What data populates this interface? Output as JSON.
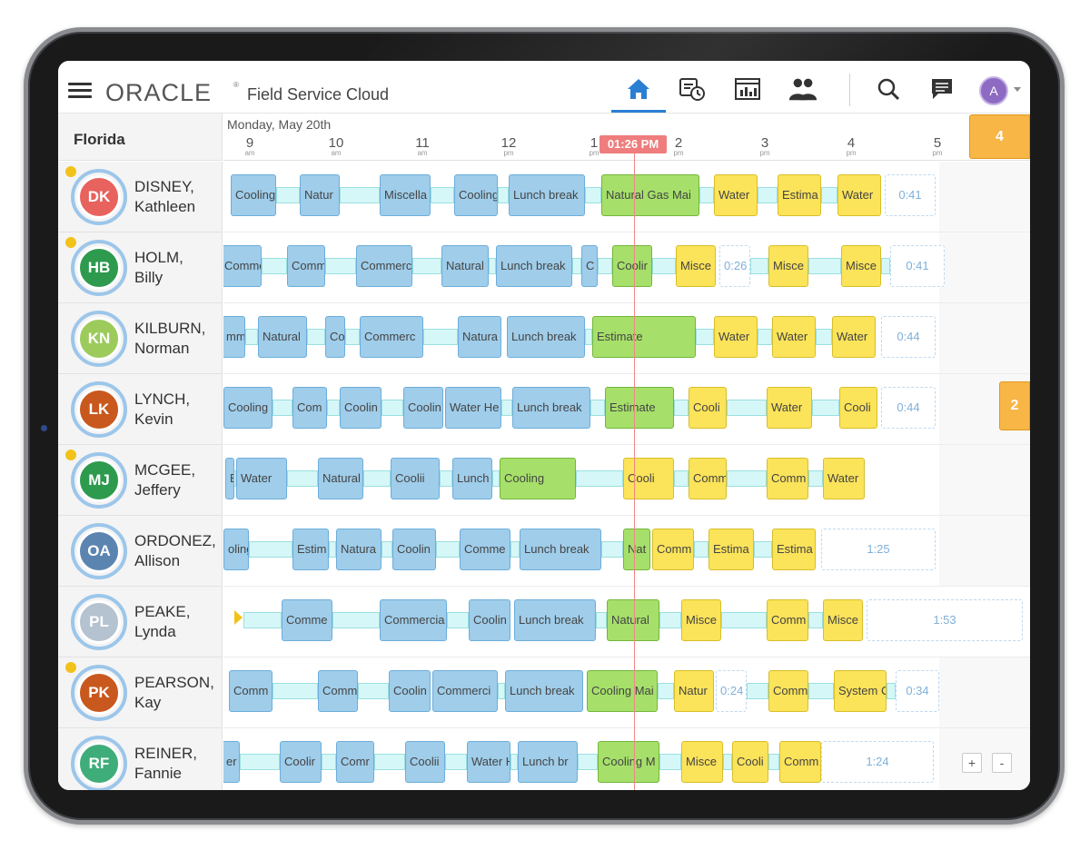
{
  "header": {
    "brand": "ORACLE",
    "brand_mark": "®",
    "product": "Field Service Cloud",
    "nav_icons": [
      "home-icon",
      "dispatch-icon",
      "dashboard-icon",
      "staff-icon",
      "search-icon",
      "chat-icon"
    ],
    "user_initial": "A"
  },
  "colors": {
    "accent": "#2a7fd4",
    "current_time": "#ef7d7d",
    "activity_blue": "#9fcdea",
    "activity_green": "#a6e06a",
    "activity_yellow": "#fbe35a",
    "badge": "#f7b646"
  },
  "region": "Florida",
  "timeline": {
    "date": "Monday, May 20th",
    "current_time": "01:26 PM",
    "ticks": [
      {
        "num": "9",
        "ampm": "am"
      },
      {
        "num": "10",
        "ampm": "am"
      },
      {
        "num": "11",
        "ampm": "am"
      },
      {
        "num": "12",
        "ampm": "pm"
      },
      {
        "num": "1",
        "ampm": "pm"
      },
      {
        "num": "2",
        "ampm": "pm"
      },
      {
        "num": "3",
        "ampm": "pm"
      },
      {
        "num": "4",
        "ampm": "pm"
      },
      {
        "num": "5",
        "ampm": "pm"
      }
    ]
  },
  "queue_badges": [
    "4",
    "2"
  ],
  "zoom": {
    "plus": "+",
    "minus": "-"
  },
  "technicians": [
    {
      "initials": "DK",
      "last": "DISNEY,",
      "first": "Kathleen",
      "color": "#e8625e",
      "alert": true
    },
    {
      "initials": "HB",
      "last": "HOLM,",
      "first": "Billy",
      "color": "#2e9a4e",
      "alert": true
    },
    {
      "initials": "KN",
      "last": "KILBURN,",
      "first": "Norman",
      "color": "#9ccb5c",
      "alert": false
    },
    {
      "initials": "LK",
      "last": "LYNCH,",
      "first": "Kevin",
      "color": "#c9581e",
      "alert": false
    },
    {
      "initials": "MJ",
      "last": "MCGEE,",
      "first": "Jeffery",
      "color": "#2e9a4e",
      "alert": true
    },
    {
      "initials": "OA",
      "last": "ORDONEZ,",
      "first": "Allison",
      "color": "#5b84b1",
      "alert": false
    },
    {
      "initials": "PL",
      "last": "PEAKE,",
      "first": "Lynda",
      "color": "#b5c2d0",
      "alert": false
    },
    {
      "initials": "PK",
      "last": "PEARSON,",
      "first": "Kay",
      "color": "#c9581e",
      "alert": true
    },
    {
      "initials": "RF",
      "last": "REINER,",
      "first": "Fannie",
      "color": "#3fad7a",
      "alert": false
    }
  ],
  "lanes": [
    [
      [
        "blue",
        "Cooling"
      ],
      [
        "blue",
        "Natur"
      ],
      [
        "blue",
        "Miscella"
      ],
      [
        "blue",
        "Cooling"
      ],
      [
        "blue",
        "Lunch break"
      ],
      [
        "green",
        "Natural Gas Mai"
      ],
      [
        "yellow",
        "Water"
      ],
      [
        "yellow",
        "Estima"
      ],
      [
        "yellow",
        "Water"
      ],
      [
        "free",
        "0:41"
      ]
    ],
    [
      [
        "blue",
        "Commer"
      ],
      [
        "blue",
        "Comm"
      ],
      [
        "blue",
        "Commerc"
      ],
      [
        "blue",
        "Natural"
      ],
      [
        "blue",
        "Lunch break"
      ],
      [
        "blue",
        "C"
      ],
      [
        "green",
        "Coolir"
      ],
      [
        "yellow",
        "Misce"
      ],
      [
        "free",
        "0:26"
      ],
      [
        "yellow",
        "Misce"
      ],
      [
        "yellow",
        "Misce"
      ],
      [
        "free",
        "0:41"
      ]
    ],
    [
      [
        "blue",
        "mm"
      ],
      [
        "blue",
        "Natural"
      ],
      [
        "blue",
        "Co"
      ],
      [
        "blue",
        "Commerc"
      ],
      [
        "blue",
        "Natura"
      ],
      [
        "blue",
        "Lunch break"
      ],
      [
        "green",
        "Estimate"
      ],
      [
        "yellow",
        "Water"
      ],
      [
        "yellow",
        "Water"
      ],
      [
        "yellow",
        "Water"
      ],
      [
        "free",
        "0:44"
      ]
    ],
    [
      [
        "blue",
        "Cooling"
      ],
      [
        "blue",
        "Com"
      ],
      [
        "blue",
        "Coolin"
      ],
      [
        "blue",
        "Coolin"
      ],
      [
        "blue",
        "Water He"
      ],
      [
        "blue",
        "Lunch break"
      ],
      [
        "green",
        "Estimate"
      ],
      [
        "yellow",
        "Cooli"
      ],
      [
        "yellow",
        "Water"
      ],
      [
        "yellow",
        "Cooli"
      ],
      [
        "free",
        "0:44"
      ]
    ],
    [
      [
        "blue",
        "Estimat"
      ],
      [
        "blue",
        "Water"
      ],
      [
        "blue",
        "Natural"
      ],
      [
        "blue",
        "Coolii"
      ],
      [
        "blue",
        "Lunch break"
      ],
      [
        "green",
        "Cooling"
      ],
      [
        "yellow",
        "Cooli"
      ],
      [
        "yellow",
        "Comm"
      ],
      [
        "yellow",
        "Comm"
      ],
      [
        "yellow",
        "Water"
      ]
    ],
    [
      [
        "blue",
        "oling"
      ],
      [
        "blue",
        "Estim"
      ],
      [
        "blue",
        "Natura"
      ],
      [
        "blue",
        "Coolin"
      ],
      [
        "blue",
        "Comme"
      ],
      [
        "blue",
        "Lunch break"
      ],
      [
        "green",
        "Nat"
      ],
      [
        "yellow",
        "Comm"
      ],
      [
        "yellow",
        "Estima"
      ],
      [
        "yellow",
        "Estima"
      ],
      [
        "free",
        "1:25"
      ]
    ],
    [
      [
        "blue",
        "Comme"
      ],
      [
        "blue",
        "Commercia"
      ],
      [
        "blue",
        "Coolin"
      ],
      [
        "blue",
        "Lunch break"
      ],
      [
        "green",
        "Natural"
      ],
      [
        "yellow",
        "Misce"
      ],
      [
        "yellow",
        "Comm"
      ],
      [
        "yellow",
        "Misce"
      ],
      [
        "free",
        "1:53"
      ]
    ],
    [
      [
        "blue",
        "Comm"
      ],
      [
        "blue",
        "Comm"
      ],
      [
        "blue",
        "Coolin"
      ],
      [
        "blue",
        "Commerci"
      ],
      [
        "blue",
        "Lunch break"
      ],
      [
        "green",
        "Cooling Mai"
      ],
      [
        "yellow",
        "Natur"
      ],
      [
        "free",
        "0:24"
      ],
      [
        "yellow",
        "Comm"
      ],
      [
        "yellow",
        "System C"
      ],
      [
        "free",
        "0:34"
      ]
    ],
    [
      [
        "blue",
        "er H"
      ],
      [
        "blue",
        "Coolir"
      ],
      [
        "blue",
        "Comr"
      ],
      [
        "blue",
        "Coolii"
      ],
      [
        "blue",
        "Water H"
      ],
      [
        "blue",
        "Lunch br"
      ],
      [
        "green",
        "Cooling M"
      ],
      [
        "yellow",
        "Misce"
      ],
      [
        "yellow",
        "Cooli"
      ],
      [
        "yellow",
        "Comm"
      ],
      [
        "free",
        "1:24"
      ]
    ]
  ]
}
